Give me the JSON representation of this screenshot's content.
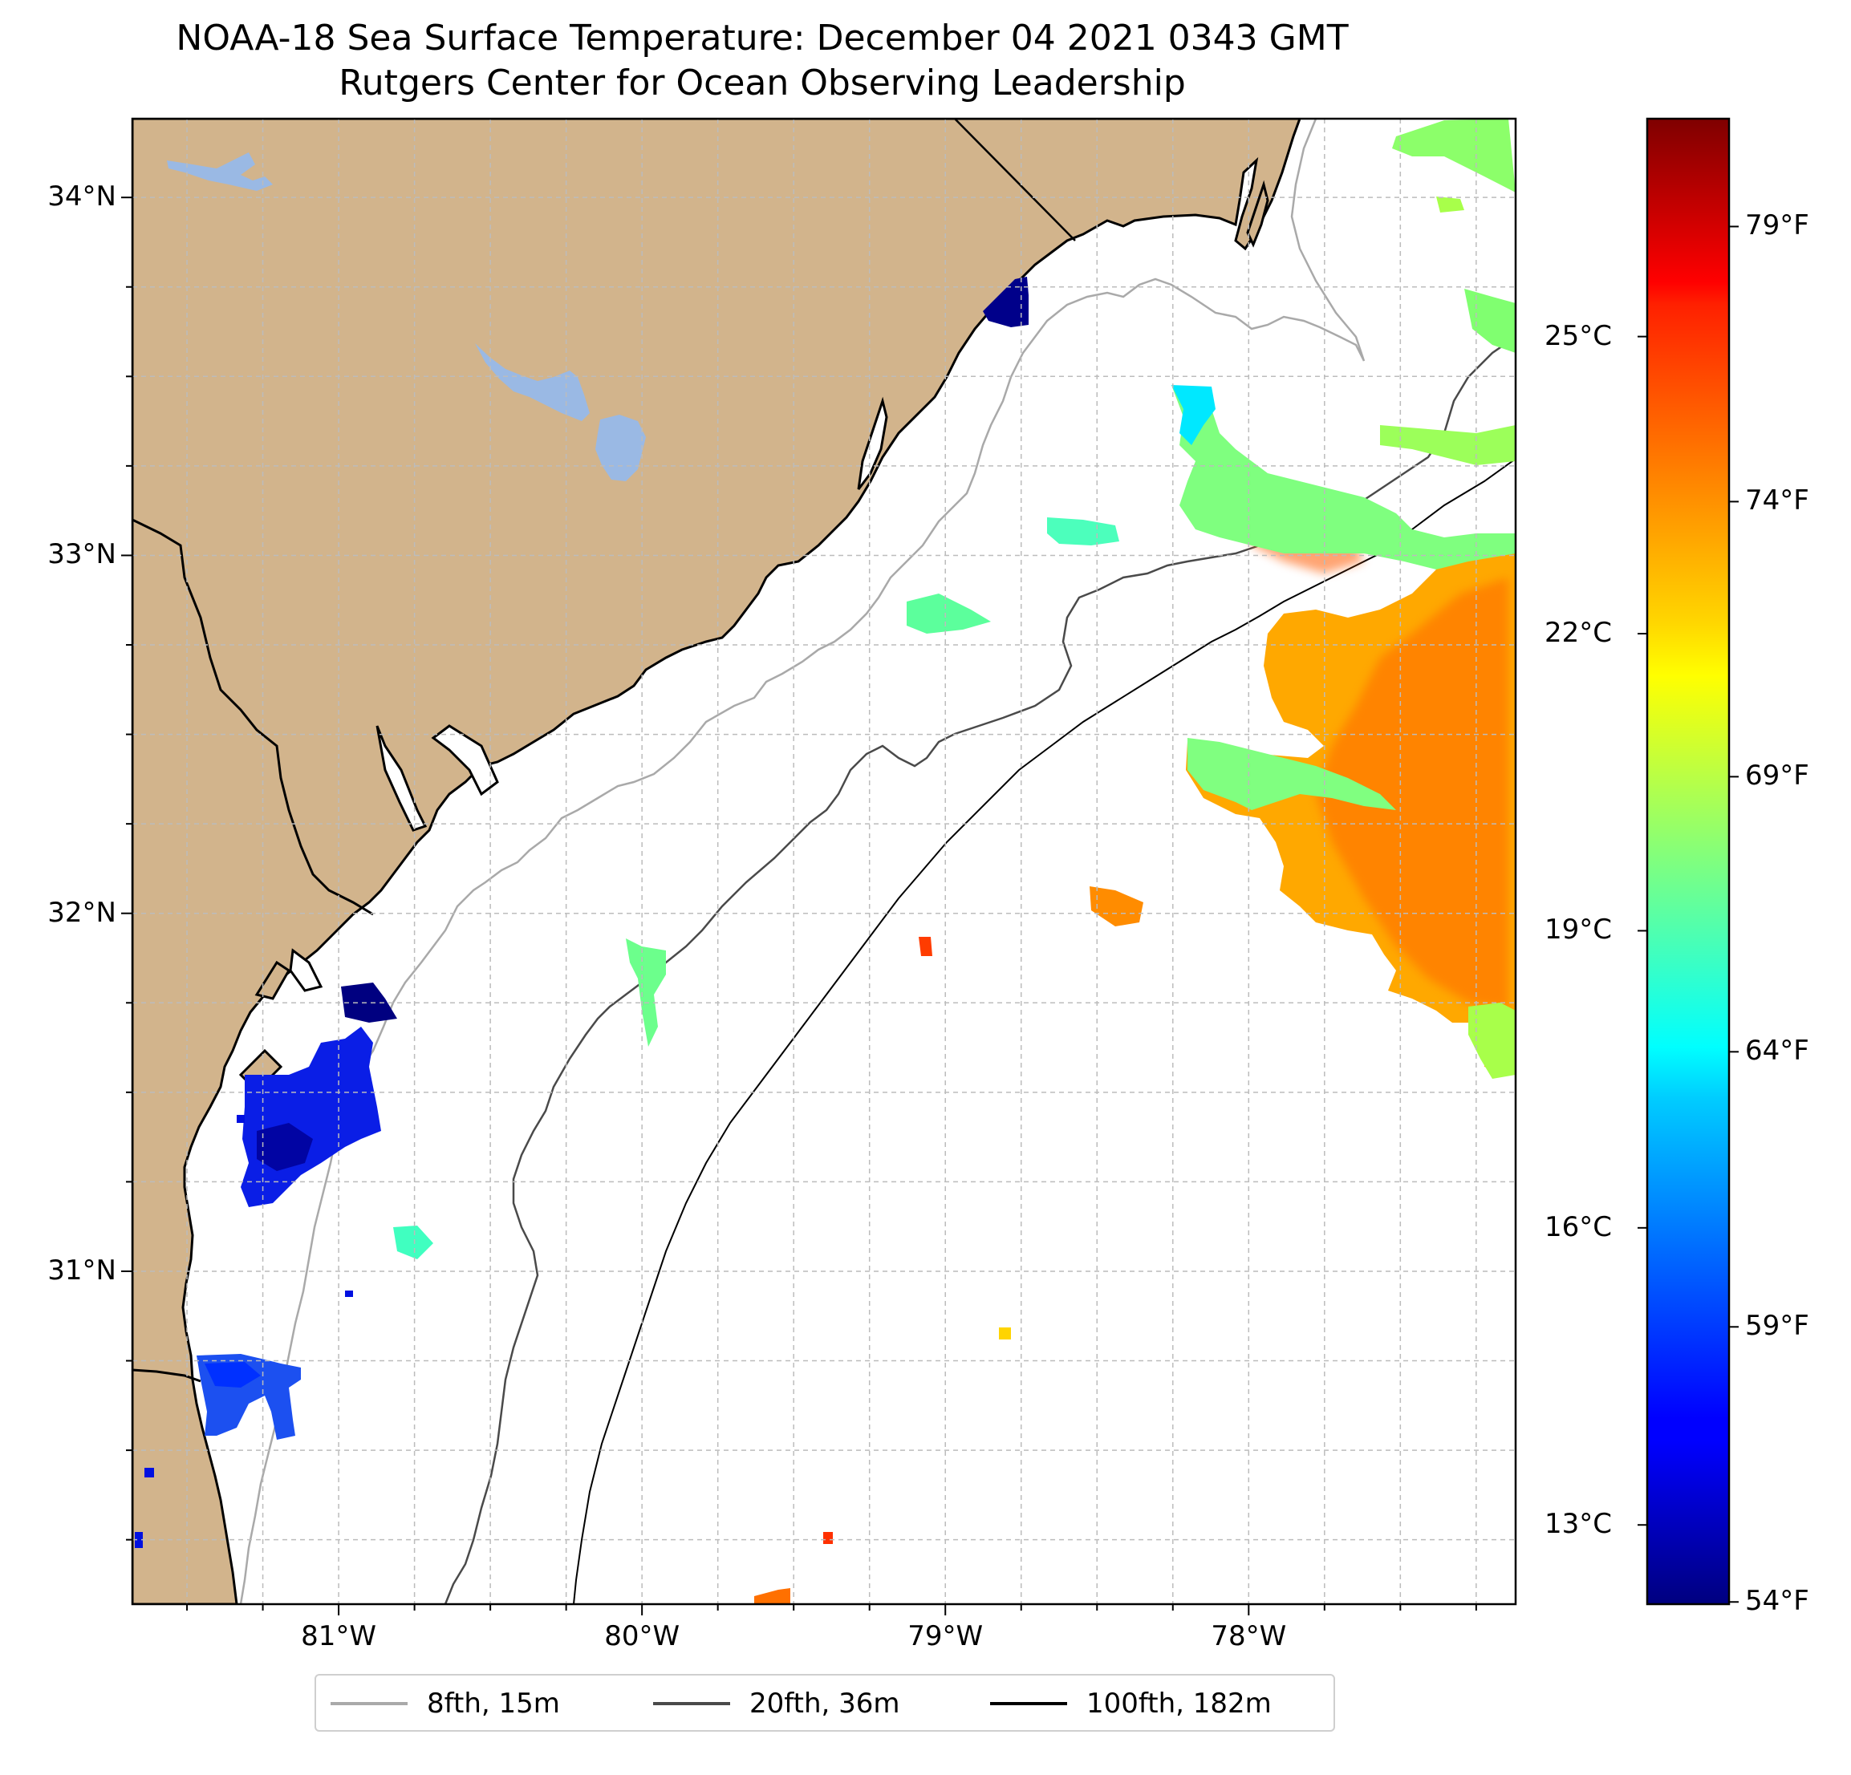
{
  "title": {
    "line1": "NOAA-18 Sea Surface Temperature: December 04 2021 0343 GMT",
    "line2": "Rutgers Center for Ocean Observing Leadership"
  },
  "map": {
    "lon_range": [
      -81.68,
      -77.12
    ],
    "lat_range": [
      30.07,
      34.22
    ],
    "land_color": "#d2b48c",
    "lake_color": "#9ab9e4",
    "ocean_color": "#ffffff",
    "grid": true,
    "lat_ticks": [
      {
        "value": 34,
        "label": "34°N"
      },
      {
        "value": 33,
        "label": "33°N"
      },
      {
        "value": 32,
        "label": "32°N"
      },
      {
        "value": 31,
        "label": "31°N"
      }
    ],
    "lon_ticks": [
      {
        "value": -81,
        "label": "81°W"
      },
      {
        "value": -80,
        "label": "80°W"
      },
      {
        "value": -79,
        "label": "79°W"
      },
      {
        "value": -78,
        "label": "78°W"
      }
    ]
  },
  "colorbar": {
    "colormap": "jet",
    "range_c": [
      12.2,
      27.2
    ],
    "celsius_ticks": [
      {
        "value": 25,
        "label": "25°C"
      },
      {
        "value": 22,
        "label": "22°C"
      },
      {
        "value": 19,
        "label": "19°C"
      },
      {
        "value": 16,
        "label": "16°C"
      },
      {
        "value": 13,
        "label": "13°C"
      }
    ],
    "fahrenheit_ticks": [
      {
        "value": 79,
        "label": "79°F"
      },
      {
        "value": 74,
        "label": "74°F"
      },
      {
        "value": 69,
        "label": "69°F"
      },
      {
        "value": 64,
        "label": "64°F"
      },
      {
        "value": 59,
        "label": "59°F"
      },
      {
        "value": 54,
        "label": "54°F"
      }
    ]
  },
  "legend": {
    "placement": "bottom-center",
    "entries": [
      {
        "label": "8fth, 15m",
        "color": "#a9a9a9"
      },
      {
        "label": "20fth, 36m",
        "color": "#4a4a4a"
      },
      {
        "label": "100fth, 182m",
        "color": "#000000"
      }
    ]
  }
}
